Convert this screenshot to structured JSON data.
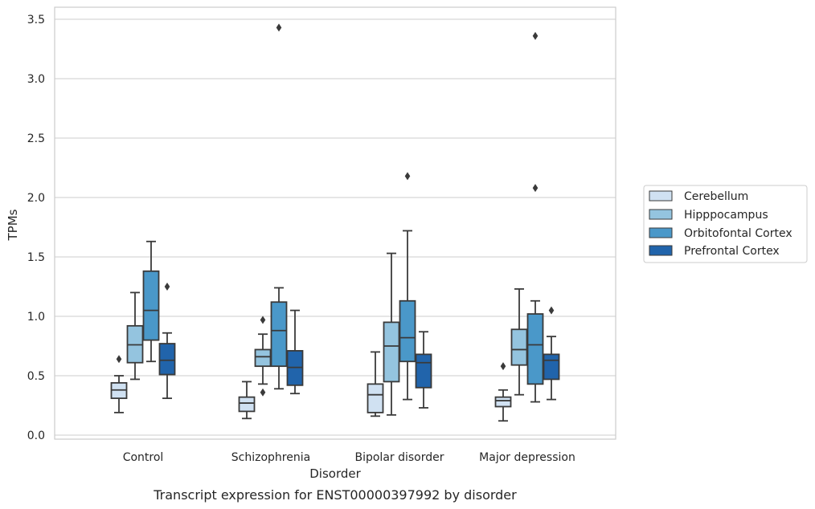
{
  "chart_data": {
    "type": "box",
    "title": "",
    "xlabel": "Disorder",
    "ylabel": "TPMs",
    "caption": "Transcript expression for ENST00000397992 by disorder",
    "ylim": [
      -0.03,
      3.6
    ],
    "yticks": [
      "0.0",
      "0.5",
      "1.0",
      "1.5",
      "2.0",
      "2.5",
      "3.0",
      "3.5"
    ],
    "grid": true,
    "legend_position": "right",
    "categories": [
      "Control",
      "Schizophrenia",
      "Bipolar disorder",
      "Major depression"
    ],
    "series": [
      {
        "name": "Cerebellum",
        "color": "#d0e1f2",
        "boxes": [
          {
            "whisker_low": 0.19,
            "q1": 0.31,
            "median": 0.38,
            "q3": 0.44,
            "whisker_high": 0.5,
            "outliers": [
              0.64
            ]
          },
          {
            "whisker_low": 0.14,
            "q1": 0.2,
            "median": 0.27,
            "q3": 0.32,
            "whisker_high": 0.45,
            "outliers": []
          },
          {
            "whisker_low": 0.16,
            "q1": 0.19,
            "median": 0.34,
            "q3": 0.43,
            "whisker_high": 0.7,
            "outliers": []
          },
          {
            "whisker_low": 0.12,
            "q1": 0.24,
            "median": 0.29,
            "q3": 0.32,
            "whisker_high": 0.38,
            "outliers": [
              0.58
            ]
          }
        ]
      },
      {
        "name": "Hipppocampus",
        "color": "#94c4df",
        "boxes": [
          {
            "whisker_low": 0.47,
            "q1": 0.61,
            "median": 0.76,
            "q3": 0.92,
            "whisker_high": 1.2,
            "outliers": []
          },
          {
            "whisker_low": 0.43,
            "q1": 0.58,
            "median": 0.66,
            "q3": 0.72,
            "whisker_high": 0.85,
            "outliers": [
              0.36,
              0.97
            ]
          },
          {
            "whisker_low": 0.17,
            "q1": 0.45,
            "median": 0.75,
            "q3": 0.95,
            "whisker_high": 1.53,
            "outliers": []
          },
          {
            "whisker_low": 0.34,
            "q1": 0.59,
            "median": 0.72,
            "q3": 0.89,
            "whisker_high": 1.23,
            "outliers": []
          }
        ]
      },
      {
        "name": "Orbitofontal Cortex",
        "color": "#4a98c9",
        "boxes": [
          {
            "whisker_low": 0.62,
            "q1": 0.8,
            "median": 1.05,
            "q3": 1.38,
            "whisker_high": 1.63,
            "outliers": []
          },
          {
            "whisker_low": 0.39,
            "q1": 0.58,
            "median": 0.88,
            "q3": 1.12,
            "whisker_high": 1.24,
            "outliers": [
              3.43
            ]
          },
          {
            "whisker_low": 0.3,
            "q1": 0.62,
            "median": 0.82,
            "q3": 1.13,
            "whisker_high": 1.72,
            "outliers": [
              2.18
            ]
          },
          {
            "whisker_low": 0.28,
            "q1": 0.43,
            "median": 0.76,
            "q3": 1.02,
            "whisker_high": 1.13,
            "outliers": [
              2.08,
              3.36
            ]
          }
        ]
      },
      {
        "name": "Prefrontal Cortex",
        "color": "#2164ab",
        "boxes": [
          {
            "whisker_low": 0.31,
            "q1": 0.51,
            "median": 0.63,
            "q3": 0.77,
            "whisker_high": 0.86,
            "outliers": [
              1.25
            ]
          },
          {
            "whisker_low": 0.35,
            "q1": 0.42,
            "median": 0.57,
            "q3": 0.71,
            "whisker_high": 1.05,
            "outliers": []
          },
          {
            "whisker_low": 0.23,
            "q1": 0.4,
            "median": 0.61,
            "q3": 0.68,
            "whisker_high": 0.87,
            "outliers": []
          },
          {
            "whisker_low": 0.3,
            "q1": 0.47,
            "median": 0.63,
            "q3": 0.68,
            "whisker_high": 0.83,
            "outliers": [
              1.05
            ]
          }
        ]
      }
    ]
  }
}
